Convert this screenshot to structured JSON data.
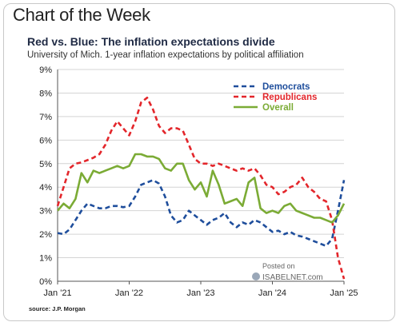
{
  "header": {
    "kicker": "Chart of the Week",
    "title": "Red vs. Blue: The inflation expectations divide",
    "subtitle": "University of Mich. 1-year inflation expectations by political affiliation"
  },
  "footer": {
    "source": "source: J.P. Morgan"
  },
  "watermark": {
    "line1": "Posted on",
    "line2": "ISABELNET.com"
  },
  "chart_data": {
    "type": "line",
    "title": "Red vs. Blue: The inflation expectations divide",
    "ylim": [
      0,
      9
    ],
    "yticks": [
      "0%",
      "1%",
      "2%",
      "3%",
      "4%",
      "5%",
      "6%",
      "7%",
      "8%",
      "9%"
    ],
    "xlim": [
      0,
      48
    ],
    "xticks": [
      {
        "label": "Jan '21",
        "x": 0
      },
      {
        "label": "Jan '22",
        "x": 12
      },
      {
        "label": "Jan '23",
        "x": 24
      },
      {
        "label": "Jan '24",
        "x": 36
      },
      {
        "label": "Jan '25",
        "x": 48
      }
    ],
    "legend_position": "top-right",
    "series": [
      {
        "name": "Democrats",
        "color": "#1f4e9c",
        "dash": "dashed",
        "values": [
          2.05,
          2.0,
          2.2,
          2.6,
          3.0,
          3.3,
          3.2,
          3.1,
          3.1,
          3.2,
          3.2,
          3.15,
          3.2,
          3.6,
          4.1,
          4.2,
          4.3,
          4.15,
          3.6,
          2.8,
          2.5,
          2.6,
          3.0,
          2.8,
          2.6,
          2.4,
          2.6,
          2.7,
          2.9,
          2.5,
          2.3,
          2.5,
          2.4,
          2.6,
          2.5,
          2.3,
          2.1,
          2.15,
          2.0,
          2.1,
          1.95,
          1.9,
          1.8,
          1.7,
          1.6,
          1.5,
          1.8,
          3.0,
          4.3
        ]
      },
      {
        "name": "Republicans",
        "color": "#e3262b",
        "dash": "dashed",
        "values": [
          3.2,
          4.0,
          4.8,
          5.0,
          5.05,
          5.15,
          5.25,
          5.4,
          5.8,
          6.4,
          6.8,
          6.5,
          6.2,
          6.8,
          7.6,
          7.8,
          7.3,
          6.6,
          6.3,
          6.5,
          6.5,
          6.4,
          5.8,
          5.2,
          5.0,
          5.0,
          4.9,
          5.0,
          4.9,
          4.8,
          4.7,
          4.8,
          4.7,
          4.8,
          4.5,
          4.1,
          4.0,
          3.7,
          3.8,
          4.0,
          4.1,
          4.4,
          4.0,
          3.8,
          3.5,
          3.4,
          2.6,
          1.0,
          0.1
        ]
      },
      {
        "name": "Overall",
        "color": "#7bab35",
        "dash": "solid",
        "values": [
          3.0,
          3.3,
          3.1,
          3.5,
          4.6,
          4.2,
          4.7,
          4.6,
          4.7,
          4.8,
          4.9,
          4.8,
          4.9,
          5.4,
          5.4,
          5.3,
          5.3,
          5.2,
          4.8,
          4.7,
          5.0,
          5.0,
          4.3,
          3.9,
          4.2,
          3.6,
          4.7,
          4.1,
          3.3,
          3.4,
          3.5,
          3.2,
          4.2,
          4.4,
          3.1,
          2.9,
          3.0,
          2.9,
          3.2,
          3.3,
          3.0,
          2.9,
          2.8,
          2.7,
          2.7,
          2.6,
          2.5,
          2.8,
          3.3
        ]
      }
    ]
  }
}
